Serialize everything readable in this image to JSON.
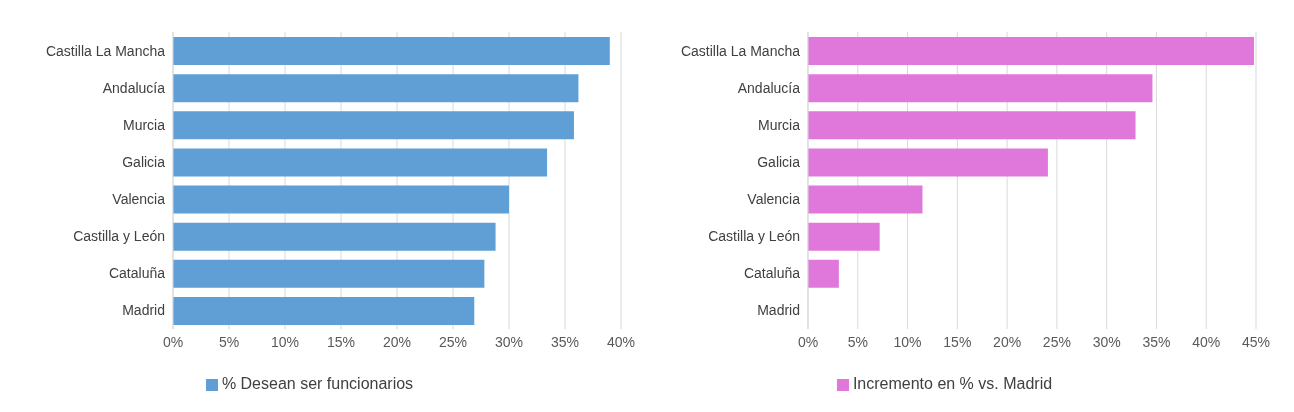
{
  "chart_data": [
    {
      "type": "bar",
      "orientation": "horizontal",
      "categories": [
        "Castilla La Mancha",
        "Andalucía",
        "Murcia",
        "Galicia",
        "Valencia",
        "Castilla y León",
        "Cataluña",
        "Madrid"
      ],
      "series": [
        {
          "name": "% Desean ser funcionarios",
          "color": "#5f9fd6",
          "values": [
            39.0,
            36.2,
            35.8,
            33.4,
            30.0,
            28.8,
            27.8,
            26.9
          ]
        }
      ],
      "xlim": [
        0,
        40
      ],
      "xticks": [
        {
          "value": 0,
          "label": "0%"
        },
        {
          "value": 5,
          "label": "5%"
        },
        {
          "value": 10,
          "label": "10%"
        },
        {
          "value": 15,
          "label": "15%"
        },
        {
          "value": 20,
          "label": "20%"
        },
        {
          "value": 25,
          "label": "25%"
        },
        {
          "value": 30,
          "label": "30%"
        },
        {
          "value": 35,
          "label": "35%"
        },
        {
          "value": 40,
          "label": "40%"
        }
      ],
      "grid": "x",
      "legend": "bottom"
    },
    {
      "type": "bar",
      "orientation": "horizontal",
      "categories": [
        "Castilla La Mancha",
        "Andalucía",
        "Murcia",
        "Galicia",
        "Valencia",
        "Castilla y León",
        "Cataluña",
        "Madrid"
      ],
      "series": [
        {
          "name": "Incremento en % vs. Madrid",
          "color": "#e078dc",
          "values": [
            44.8,
            34.6,
            32.9,
            24.1,
            11.5,
            7.2,
            3.1,
            0
          ]
        }
      ],
      "xlim": [
        0,
        45
      ],
      "xticks": [
        {
          "value": 0,
          "label": "0%"
        },
        {
          "value": 5,
          "label": "5%"
        },
        {
          "value": 10,
          "label": "10%"
        },
        {
          "value": 15,
          "label": "15%"
        },
        {
          "value": 20,
          "label": "20%"
        },
        {
          "value": 25,
          "label": "25%"
        },
        {
          "value": 30,
          "label": "30%"
        },
        {
          "value": 35,
          "label": "35%"
        },
        {
          "value": 40,
          "label": "40%"
        },
        {
          "value": 45,
          "label": "45%"
        }
      ],
      "grid": "x",
      "legend": "bottom"
    }
  ]
}
